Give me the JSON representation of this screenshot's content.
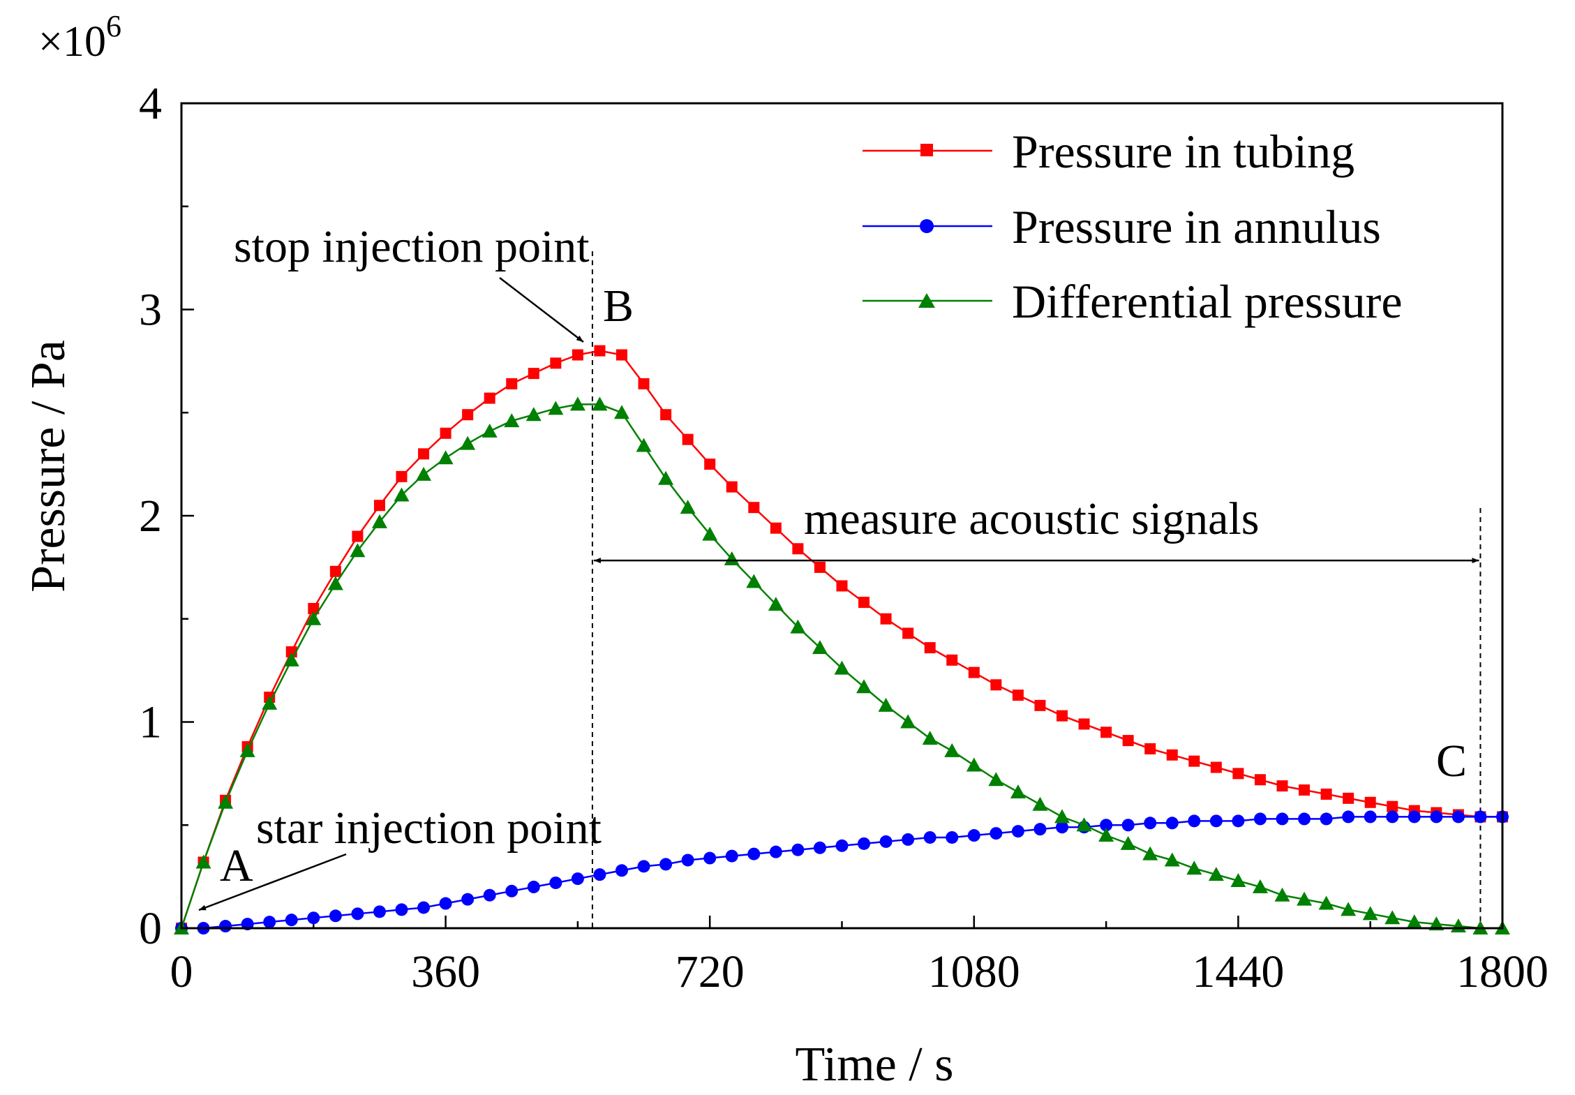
{
  "chart_data": {
    "type": "line",
    "title": "",
    "xlabel": "Time / s",
    "ylabel": "Pressure / Pa",
    "y_multiplier_base": "×10",
    "y_multiplier_exp": "6",
    "xlim": [
      0,
      1800
    ],
    "ylim": [
      0,
      4
    ],
    "xticks": [
      0,
      360,
      720,
      1080,
      1440,
      1800
    ],
    "xtick_labels": [
      "0",
      "360",
      "720",
      "1080",
      "1440",
      "1800"
    ],
    "yticks": [
      0,
      1,
      2,
      3,
      4
    ],
    "ytick_labels": [
      "0",
      "1",
      "2",
      "3",
      "4"
    ],
    "x_minor_step": 180,
    "y_minor_step": 0.5,
    "legend_position": "top-right",
    "series": [
      {
        "name": "Pressure in tubing",
        "color": "#ff0000",
        "marker": "square",
        "x": [
          0,
          30,
          60,
          90,
          120,
          150,
          180,
          210,
          240,
          270,
          300,
          330,
          360,
          390,
          420,
          450,
          480,
          510,
          540,
          570,
          600,
          630,
          660,
          690,
          720,
          750,
          780,
          810,
          840,
          870,
          900,
          930,
          960,
          990,
          1020,
          1050,
          1080,
          1110,
          1140,
          1170,
          1200,
          1230,
          1260,
          1290,
          1320,
          1350,
          1380,
          1410,
          1440,
          1470,
          1500,
          1530,
          1560,
          1590,
          1620,
          1650,
          1680,
          1710,
          1740,
          1770,
          1800
        ],
        "values": [
          0,
          0.32,
          0.62,
          0.88,
          1.12,
          1.34,
          1.55,
          1.73,
          1.9,
          2.05,
          2.19,
          2.3,
          2.4,
          2.49,
          2.57,
          2.64,
          2.69,
          2.74,
          2.78,
          2.8,
          2.78,
          2.64,
          2.49,
          2.37,
          2.25,
          2.14,
          2.04,
          1.94,
          1.84,
          1.75,
          1.66,
          1.58,
          1.5,
          1.43,
          1.36,
          1.3,
          1.24,
          1.18,
          1.13,
          1.08,
          1.03,
          0.99,
          0.95,
          0.91,
          0.87,
          0.84,
          0.81,
          0.78,
          0.75,
          0.72,
          0.69,
          0.67,
          0.65,
          0.63,
          0.61,
          0.59,
          0.57,
          0.56,
          0.55,
          0.54,
          0.54
        ]
      },
      {
        "name": "Pressure in annulus",
        "color": "#0000ff",
        "marker": "circle",
        "x": [
          0,
          30,
          60,
          90,
          120,
          150,
          180,
          210,
          240,
          270,
          300,
          330,
          360,
          390,
          420,
          450,
          480,
          510,
          540,
          570,
          600,
          630,
          660,
          690,
          720,
          750,
          780,
          810,
          840,
          870,
          900,
          930,
          960,
          990,
          1020,
          1050,
          1080,
          1110,
          1140,
          1170,
          1200,
          1230,
          1260,
          1290,
          1320,
          1350,
          1380,
          1410,
          1440,
          1470,
          1500,
          1530,
          1560,
          1590,
          1620,
          1650,
          1680,
          1710,
          1740,
          1770,
          1800
        ],
        "values": [
          0,
          0,
          0.01,
          0.02,
          0.03,
          0.04,
          0.05,
          0.06,
          0.07,
          0.08,
          0.09,
          0.1,
          0.12,
          0.14,
          0.16,
          0.18,
          0.2,
          0.22,
          0.24,
          0.26,
          0.28,
          0.3,
          0.31,
          0.33,
          0.34,
          0.35,
          0.36,
          0.37,
          0.38,
          0.39,
          0.4,
          0.41,
          0.42,
          0.43,
          0.44,
          0.44,
          0.45,
          0.46,
          0.47,
          0.48,
          0.49,
          0.49,
          0.5,
          0.5,
          0.51,
          0.51,
          0.52,
          0.52,
          0.52,
          0.53,
          0.53,
          0.53,
          0.53,
          0.54,
          0.54,
          0.54,
          0.54,
          0.54,
          0.54,
          0.54,
          0.54
        ]
      },
      {
        "name": "Differential pressure",
        "color": "#008000",
        "marker": "triangle",
        "x": [
          0,
          30,
          60,
          90,
          120,
          150,
          180,
          210,
          240,
          270,
          300,
          330,
          360,
          390,
          420,
          450,
          480,
          510,
          540,
          570,
          600,
          630,
          660,
          690,
          720,
          750,
          780,
          810,
          840,
          870,
          900,
          930,
          960,
          990,
          1020,
          1050,
          1080,
          1110,
          1140,
          1170,
          1200,
          1230,
          1260,
          1290,
          1320,
          1350,
          1380,
          1410,
          1440,
          1470,
          1500,
          1530,
          1560,
          1590,
          1620,
          1650,
          1680,
          1710,
          1740,
          1770,
          1800
        ],
        "values": [
          0,
          0.32,
          0.61,
          0.86,
          1.09,
          1.3,
          1.5,
          1.67,
          1.83,
          1.97,
          2.1,
          2.2,
          2.28,
          2.35,
          2.41,
          2.46,
          2.49,
          2.52,
          2.54,
          2.54,
          2.5,
          2.34,
          2.18,
          2.04,
          1.91,
          1.79,
          1.68,
          1.57,
          1.46,
          1.36,
          1.26,
          1.17,
          1.08,
          1,
          0.92,
          0.86,
          0.79,
          0.72,
          0.66,
          0.6,
          0.54,
          0.5,
          0.45,
          0.41,
          0.36,
          0.33,
          0.29,
          0.26,
          0.23,
          0.2,
          0.16,
          0.14,
          0.12,
          0.09,
          0.07,
          0.05,
          0.03,
          0.02,
          0.01,
          0,
          0
        ]
      }
    ],
    "annotations": {
      "stop_label": "stop injection point",
      "start_label": "star injection point",
      "point_a": "A",
      "point_b": "B",
      "point_c": "C",
      "measure_label": "measure acoustic signals",
      "b_time": 560,
      "c_time": 1770,
      "measure_arrow_level": 1.8
    }
  }
}
